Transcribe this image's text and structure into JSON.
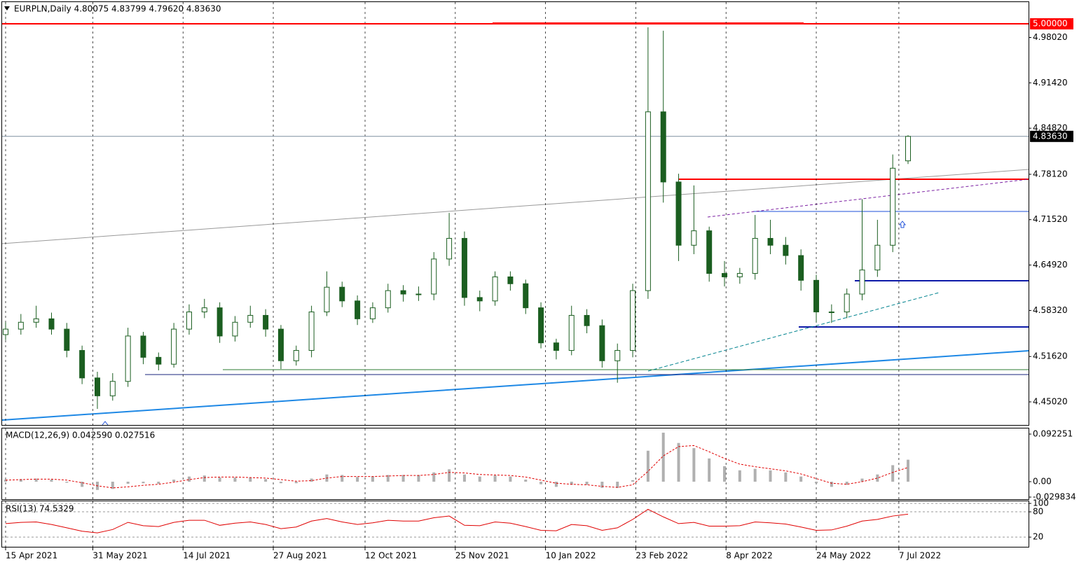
{
  "chart_data": [
    {
      "type": "candlestick",
      "title": "EURPLN,Daily 4.80075 4.83799 4.79620 4.83630",
      "up_color": "#ffffff",
      "down_color": "#1b5e20",
      "wick_color": "#1b5e20",
      "open": [
        4.548,
        4.556,
        4.566,
        4.571,
        4.556,
        4.525,
        4.485,
        4.459,
        4.48,
        4.546,
        4.515,
        4.505,
        4.556,
        4.581,
        4.587,
        4.546,
        4.566,
        4.576,
        4.556,
        4.51,
        4.525,
        4.581,
        4.617,
        4.597,
        4.571,
        4.587,
        4.612,
        4.607,
        4.607,
        4.658,
        4.688,
        4.602,
        4.597,
        4.632,
        4.622,
        4.587,
        4.536,
        4.525,
        4.576,
        4.561,
        4.51,
        4.525,
        4.612,
        4.872,
        4.77,
        4.678,
        4.699,
        4.637,
        4.632,
        4.637,
        4.688,
        4.678,
        4.663,
        4.627,
        4.581,
        4.581,
        4.607,
        4.642,
        4.678,
        4.80075
      ],
      "high": [
        4.566,
        4.578,
        4.59,
        4.58,
        4.565,
        4.532,
        4.494,
        4.492,
        4.558,
        4.552,
        4.522,
        4.565,
        4.592,
        4.6,
        4.595,
        4.575,
        4.59,
        4.585,
        4.562,
        4.532,
        4.59,
        4.64,
        4.625,
        4.605,
        4.595,
        4.622,
        4.62,
        4.618,
        4.668,
        4.725,
        4.698,
        4.612,
        4.64,
        4.64,
        4.628,
        4.595,
        4.542,
        4.59,
        4.585,
        4.57,
        4.535,
        4.622,
        4.995,
        4.99,
        4.782,
        4.765,
        4.705,
        4.655,
        4.645,
        4.722,
        4.715,
        4.69,
        4.672,
        4.635,
        4.592,
        4.615,
        4.745,
        4.715,
        4.81,
        4.83799
      ],
      "low": [
        4.54,
        4.548,
        4.558,
        4.548,
        4.515,
        4.476,
        4.44,
        4.452,
        4.472,
        4.505,
        4.496,
        4.5,
        4.548,
        4.572,
        4.536,
        4.538,
        4.558,
        4.545,
        4.498,
        4.503,
        4.515,
        4.575,
        4.588,
        4.562,
        4.565,
        4.58,
        4.596,
        4.597,
        4.598,
        4.648,
        4.59,
        4.582,
        4.59,
        4.612,
        4.578,
        4.528,
        4.512,
        4.518,
        4.55,
        4.5,
        4.478,
        4.515,
        4.6,
        4.74,
        4.655,
        4.665,
        4.625,
        4.618,
        4.622,
        4.628,
        4.665,
        4.65,
        4.612,
        4.566,
        4.565,
        4.572,
        4.598,
        4.632,
        4.668,
        4.7962
      ],
      "close": [
        4.556,
        4.566,
        4.571,
        4.556,
        4.525,
        4.485,
        4.459,
        4.48,
        4.546,
        4.515,
        4.505,
        4.556,
        4.581,
        4.587,
        4.546,
        4.566,
        4.576,
        4.556,
        4.51,
        4.525,
        4.581,
        4.617,
        4.597,
        4.571,
        4.587,
        4.612,
        4.607,
        4.607,
        4.658,
        4.688,
        4.602,
        4.597,
        4.632,
        4.622,
        4.587,
        4.536,
        4.525,
        4.576,
        4.561,
        4.51,
        4.525,
        4.612,
        4.872,
        4.77,
        4.678,
        4.699,
        4.637,
        4.632,
        4.637,
        4.688,
        4.678,
        4.663,
        4.627,
        4.581,
        4.581,
        4.607,
        4.642,
        4.678,
        4.79,
        4.8363
      ],
      "ylim": [
        4.4166,
        5.0316
      ],
      "yticks": [
        {
          "value": 4.9802,
          "label": "4.98020"
        },
        {
          "value": 4.9142,
          "label": "4.91420"
        },
        {
          "value": 4.8482,
          "label": "4.84820"
        },
        {
          "value": 4.7812,
          "label": "4.78120"
        },
        {
          "value": 4.7152,
          "label": "4.71520"
        },
        {
          "value": 4.6492,
          "label": "4.64920"
        },
        {
          "value": 4.5832,
          "label": "4.58320"
        },
        {
          "value": 4.5162,
          "label": "4.51620"
        },
        {
          "value": 4.4502,
          "label": "4.45020"
        }
      ],
      "levels": [
        {
          "value": 5,
          "label": "5.00000",
          "color": "#ff0000"
        },
        {
          "value": 4.8363,
          "label": "4.83630",
          "color": "#000000"
        }
      ],
      "xticks": [
        {
          "value": 0,
          "label": "15 Apr 2021"
        },
        {
          "value": 5.7,
          "label": "31 May 2021"
        },
        {
          "value": 11.6,
          "label": "14 Jul 2021"
        },
        {
          "value": 17.5,
          "label": "27 Aug 2021"
        },
        {
          "value": 23.5,
          "label": "12 Oct 2021"
        },
        {
          "value": 29.4,
          "label": "25 Nov 2021"
        },
        {
          "value": 35.3,
          "label": "10 Jan 2022"
        },
        {
          "value": 41.2,
          "label": "23 Feb 2022"
        },
        {
          "value": 47.1,
          "label": "8 Apr 2022"
        },
        {
          "value": 53,
          "label": "24 May 2022"
        },
        {
          "value": 58.4,
          "label": "7 Jul 2022"
        }
      ]
    },
    {
      "type": "macd",
      "title": "MACD(12,26,9) 0.042590 0.027516",
      "color": "#b0b0b0",
      "signal_color": "#e00000",
      "values": [
        0.004,
        0.005,
        0.006,
        0.004,
        -0.002,
        -0.01,
        -0.016,
        -0.014,
        -0.004,
        -0.003,
        -0.004,
        0.004,
        0.01,
        0.012,
        0.008,
        0.008,
        0.008,
        0.005,
        -0.003,
        -0.003,
        0.006,
        0.014,
        0.013,
        0.009,
        0.01,
        0.013,
        0.013,
        0.013,
        0.018,
        0.024,
        0.014,
        0.01,
        0.012,
        0.01,
        0.004,
        -0.005,
        -0.01,
        -0.006,
        -0.006,
        -0.012,
        -0.012,
        0.003,
        0.06,
        0.095,
        0.075,
        0.065,
        0.045,
        0.03,
        0.022,
        0.025,
        0.022,
        0.018,
        0.01,
        -0.003,
        -0.01,
        -0.006,
        0.006,
        0.014,
        0.032,
        0.04259
      ],
      "signal": [
        0.003,
        0.004,
        0.005,
        0.005,
        0.003,
        -0.002,
        -0.008,
        -0.012,
        -0.01,
        -0.007,
        -0.005,
        -0.001,
        0.004,
        0.008,
        0.009,
        0.009,
        0.008,
        0.007,
        0.004,
        0.001,
        0.002,
        0.007,
        0.01,
        0.01,
        0.01,
        0.011,
        0.012,
        0.012,
        0.014,
        0.018,
        0.017,
        0.014,
        0.013,
        0.012,
        0.009,
        0.003,
        -0.003,
        -0.005,
        -0.006,
        -0.009,
        -0.011,
        -0.006,
        0.02,
        0.05,
        0.068,
        0.07,
        0.058,
        0.045,
        0.034,
        0.029,
        0.025,
        0.021,
        0.015,
        0.006,
        -0.003,
        -0.005,
        0,
        0.007,
        0.018,
        0.027516
      ],
      "ylim": [
        -0.0339,
        0.1031
      ],
      "yticks": [
        0.092251,
        {
          "value": 0,
          "label": "0.00"
        },
        -0.029834
      ]
    },
    {
      "type": "line",
      "title": "RSI(13) 74.5329",
      "color": "#e00000",
      "values": [
        52,
        55,
        56,
        50,
        42,
        34,
        30,
        38,
        55,
        47,
        45,
        55,
        60,
        60,
        48,
        53,
        56,
        50,
        40,
        44,
        58,
        64,
        56,
        50,
        54,
        60,
        58,
        58,
        66,
        70,
        48,
        47,
        56,
        53,
        45,
        36,
        35,
        50,
        47,
        36,
        42,
        62,
        86,
        68,
        52,
        55,
        46,
        46,
        47,
        56,
        54,
        51,
        44,
        36,
        37,
        46,
        58,
        62,
        70,
        74.5329
      ],
      "ylim": [
        -3,
        105
      ],
      "yticks": [
        100,
        80,
        20
      ]
    }
  ]
}
